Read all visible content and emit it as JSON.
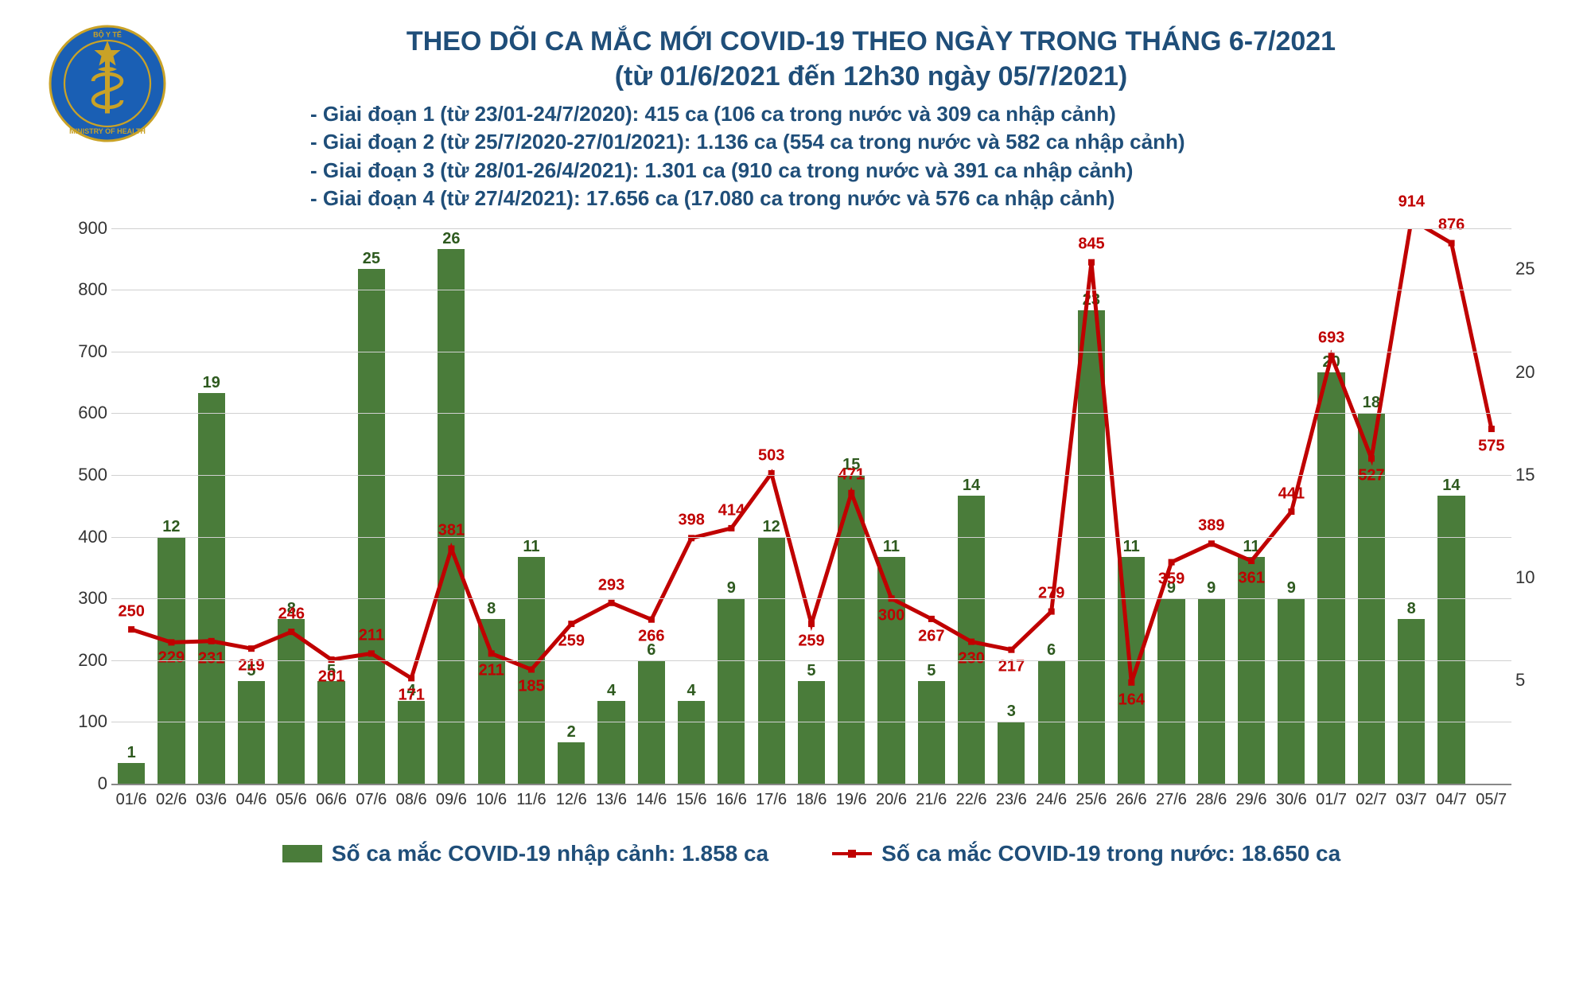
{
  "title_line1": "THEO DÕI CA MẮC MỚI COVID-19 THEO NGÀY TRONG THÁNG 6-7/2021",
  "title_line2": "(từ 01/6/2021 đến 12h30 ngày 05/7/2021)",
  "subtitles": [
    "- Giai đoạn 1 (từ 23/01-24/7/2020): 415 ca (106 ca trong nước và 309 ca nhập cảnh)",
    "- Giai đoạn 2 (từ 25/7/2020-27/01/2021): 1.136 ca (554 ca trong nước và 582 ca nhập cảnh)",
    "- Giai đoạn 3 (từ 28/01-26/4/2021): 1.301 ca (910 ca trong nước và 391 ca nhập cảnh)",
    "- Giai đoạn 4 (từ 27/4/2021): 17.656 ca (17.080 ca trong nước và 576 ca nhập cảnh)"
  ],
  "legend": {
    "bars": "Số ca mắc COVID-19 nhập cảnh: 1.858 ca",
    "line": "Số ca mắc COVID-19 trong nước: 18.650 ca"
  },
  "chart": {
    "type": "combo-bar-line",
    "colors": {
      "bar": "#4a7c3a",
      "bar_label": "#2e5a1f",
      "line": "#c00000",
      "line_label": "#c00000",
      "grid": "#d0d0d0",
      "title": "#1f4e79",
      "background": "#ffffff"
    },
    "y_left": {
      "min": 0,
      "max": 900,
      "step": 100
    },
    "y_right": {
      "min": 0,
      "max": 27,
      "step": 5
    },
    "categories": [
      "01/6",
      "02/6",
      "03/6",
      "04/6",
      "05/6",
      "06/6",
      "07/6",
      "08/6",
      "09/6",
      "10/6",
      "11/6",
      "12/6",
      "13/6",
      "14/6",
      "15/6",
      "16/6",
      "17/6",
      "18/6",
      "19/6",
      "20/6",
      "21/6",
      "22/6",
      "23/6",
      "24/6",
      "25/6",
      "26/6",
      "27/6",
      "28/6",
      "29/6",
      "30/6",
      "01/7",
      "02/7",
      "03/7",
      "04/7",
      "05/7"
    ],
    "bars_values": [
      1,
      12,
      19,
      5,
      8,
      5,
      25,
      4,
      26,
      8,
      11,
      2,
      4,
      6,
      4,
      9,
      12,
      5,
      15,
      11,
      5,
      14,
      3,
      6,
      23,
      11,
      9,
      9,
      11,
      9,
      20,
      18,
      8,
      14,
      null
    ],
    "line_values": [
      250,
      229,
      231,
      219,
      246,
      201,
      211,
      171,
      381,
      211,
      185,
      259,
      293,
      266,
      398,
      414,
      503,
      259,
      471,
      300,
      267,
      230,
      217,
      279,
      845,
      164,
      359,
      389,
      361,
      441,
      693,
      527,
      914,
      876,
      575
    ],
    "line_label_offsets": {
      "0": -22,
      "1": 20,
      "2": 22,
      "3": 22,
      "4": -22,
      "5": 22,
      "6": -22,
      "7": 22,
      "8": -22,
      "9": 22,
      "10": 22,
      "11": 22,
      "12": -22,
      "13": 22,
      "14": -22,
      "15": -22,
      "16": -22,
      "17": 22,
      "18": -22,
      "19": 22,
      "20": 22,
      "21": 22,
      "22": 22,
      "23": -22,
      "24": -22,
      "25": 22,
      "26": 22,
      "27": -22,
      "28": 22,
      "29": -22,
      "30": -22,
      "31": 22,
      "32": -22,
      "33": -22,
      "34": 22
    },
    "font_sizes": {
      "title": 34,
      "subtitle": 26,
      "axis": 22,
      "bar_label": 20,
      "line_label": 20,
      "legend": 28
    }
  }
}
